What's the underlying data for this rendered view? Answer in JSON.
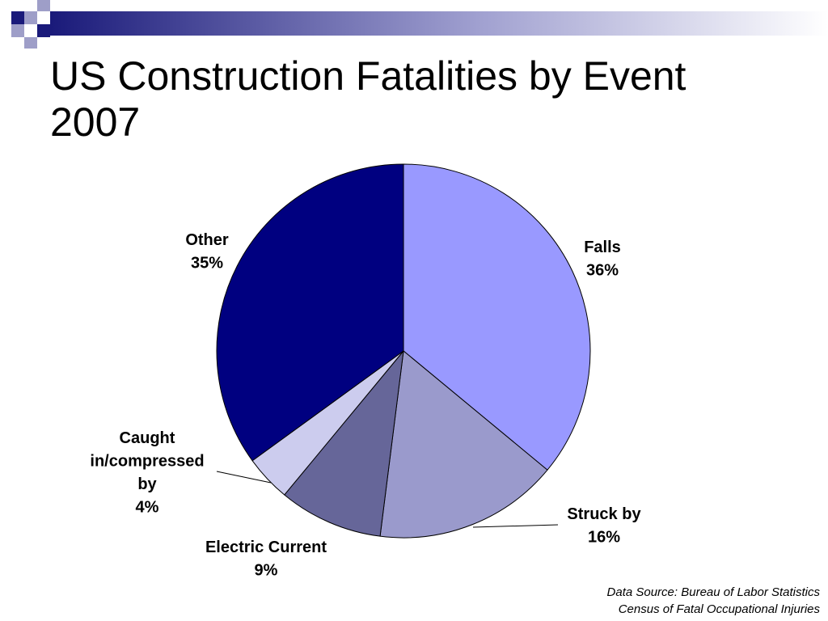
{
  "colors": {
    "deco_dark": "#1a1a7a",
    "deco_light": "#9e9ec8",
    "slice_outline": "#000000",
    "leader_line": "#000000"
  },
  "slide": {
    "title_line1": "US Construction Fatalities by Event",
    "title_line2": "2007",
    "source_line1": "Data Source: Bureau of Labor Statistics",
    "source_line2": "Census of Fatal Occupational Injuries"
  },
  "chart_data": {
    "type": "pie",
    "title": "US Construction Fatalities by Event 2007",
    "start_angle_deg": 0,
    "direction": "clockwise",
    "slices": [
      {
        "key": "falls",
        "label_lines": [
          "Falls"
        ],
        "pct_label": "36%",
        "value": 36,
        "color": "#9999ff"
      },
      {
        "key": "struck",
        "label_lines": [
          "Struck by"
        ],
        "pct_label": "16%",
        "value": 16,
        "color": "#9a9acc"
      },
      {
        "key": "electric",
        "label_lines": [
          "Electric Current"
        ],
        "pct_label": "9%",
        "value": 9,
        "color": "#666699"
      },
      {
        "key": "caught",
        "label_lines": [
          "Caught",
          "in/compressed",
          "by"
        ],
        "pct_label": "4%",
        "value": 4,
        "color": "#ccccee"
      },
      {
        "key": "other",
        "label_lines": [
          "Other"
        ],
        "pct_label": "35%",
        "value": 35,
        "color": "#000080"
      }
    ]
  }
}
